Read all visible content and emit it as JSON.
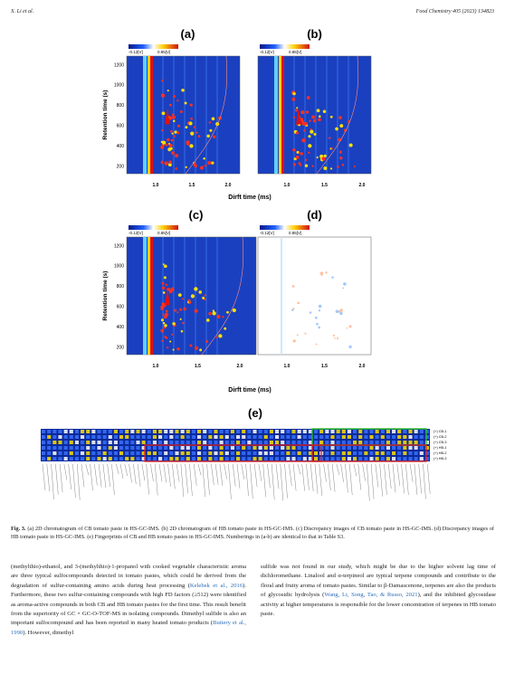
{
  "header": {
    "authors": "X. Li et al.",
    "journal": "Food Chemistry 405 (2023) 134823"
  },
  "figure": {
    "panels": [
      {
        "label": "(a)"
      },
      {
        "label": "(b)"
      },
      {
        "label": "(c)"
      },
      {
        "label": "(d)"
      }
    ],
    "colorbar": {
      "min": "-0.12[V]",
      "max": "0.85[V]"
    },
    "y_axis_label": "Retention time (s)",
    "x_axis_label": "Dirft time (ms)",
    "yticks": [
      "1200",
      "1000",
      "800",
      "600",
      "400",
      "200"
    ],
    "xticks": [
      "1.0",
      "1.5",
      "2.0"
    ],
    "fingerprint": {
      "label": "(e)",
      "rows": [
        "(+) CB-1",
        "(+) CB-2",
        "(+) CB-3",
        "(+) HB-1",
        "(+) HB-2",
        "(+) HB-3"
      ]
    },
    "caption": {
      "label": "Fig. 3.",
      "text": "(a) 2D chromatogram of CB tomato paste in HS-GC-IMS. (b) 2D chromatogram of HB tomato paste in HS-GC-IMS. (c) Discrepancy images of CB tomato paste in HS-GC-IMS. (d) Discrepancy images of HB tomato paste in HS-GC-IMS. (e) Fingerprints of CB and HB tomato pastes in HS-GC-IMS. Numberings in (a-b) are identical to that in Table S3."
    }
  },
  "body": {
    "left": [
      "(methylthio)-ethanol, and 3-(methylthio)-1-propanol with cooked vegetable characteristic aroma are three typical sulfocompounds detected in tomato pastes, which could be derived from the degradation of sulfur-containing amino acids during heat processing (",
      "Kelebek et al., 2016",
      "). Furthermore, these two sulfur-containing compounds with high FD factors (≥512) were identified as aroma-active compounds in both CB and HB tomato pastes for the first time. This result benefit from the superiority of GC × GC-O-TOF-MS in isolating compounds. Dimethyl sulfide is also an important sulfocompound and has been reported in many heated tomato products (",
      "Buttery et al., 1990",
      "). However, dimethyl"
    ],
    "right": [
      "sulfide was not found in our study, which might be due to the higher solvent lag time of dichloromethane. Linalool and α-terpineol are typical terpene compounds and contribute to the floral and fruity aroma of tomato pastes. Similar to β-Damascenone, terpenes are also the products of glycosidic hydrolysis (",
      "Wang, Li, Song, Tao, & Russo, 2021",
      "), and the inhibited glycosidase activity at higher temperatures is responsible for the lower concentration of terpenes in HB tomato paste."
    ]
  }
}
